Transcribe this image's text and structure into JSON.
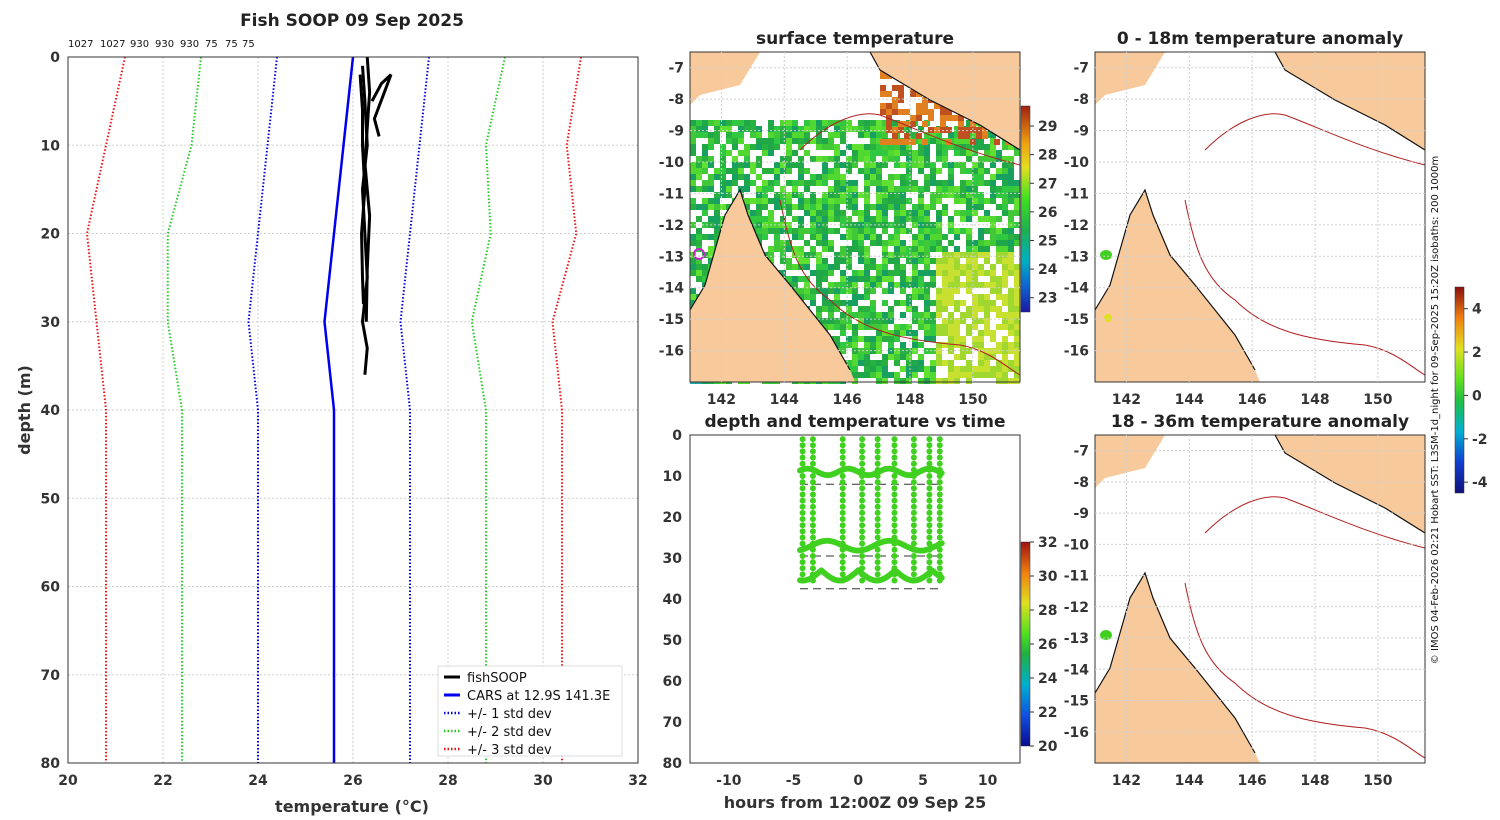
{
  "chart_data": [
    {
      "type": "line",
      "title": "Fish SOOP 09 Sep 2025",
      "xlabel": "temperature (°C)",
      "ylabel": "depth (m)",
      "xlim": [
        20,
        32
      ],
      "ylim": [
        80,
        0
      ],
      "xticks": [
        20,
        22,
        24,
        26,
        28,
        30,
        32
      ],
      "yticks": [
        0,
        10,
        20,
        30,
        40,
        50,
        60,
        70,
        80
      ],
      "top_labels": [
        "1027",
        "1027",
        "930",
        "930",
        "930",
        "75",
        "75",
        "75"
      ],
      "depths": [
        0,
        10,
        20,
        30,
        40,
        50,
        60,
        70,
        80
      ],
      "series": [
        {
          "name": "fishSOOP",
          "color": "#000000",
          "style": "solid",
          "traces": [
            {
              "t": [
                26.2,
                26.25,
                26.3,
                26.2,
                26.25,
                26.3,
                26.2,
                26.3,
                26.25
              ],
              "d": [
                1,
                5,
                10,
                15,
                20,
                25,
                30,
                33,
                36
              ]
            },
            {
              "t": [
                26.3,
                26.35,
                26.3,
                26.25,
                26.35,
                26.3,
                26.28
              ],
              "d": [
                0,
                4,
                8,
                12,
                18,
                24,
                30
              ]
            },
            {
              "t": [
                26.15,
                26.2,
                26.2,
                26.25,
                26.18,
                26.2,
                26.22
              ],
              "d": [
                2,
                6,
                10,
                15,
                20,
                25,
                28
              ]
            },
            {
              "t": [
                26.4,
                26.5,
                26.6,
                26.8,
                26.45,
                26.55
              ],
              "d": [
                5,
                4,
                3,
                2,
                7,
                9
              ]
            }
          ]
        },
        {
          "name": "CARS at 12.9S 141.3E",
          "color": "#0000ee",
          "style": "solid",
          "values": [
            26.0,
            25.8,
            25.6,
            25.4,
            25.6,
            25.6,
            25.6,
            25.6,
            25.6
          ]
        },
        {
          "name": "+/- 1 std dev",
          "color": "#0000dd",
          "style": "dotted",
          "left": [
            24.4,
            24.2,
            24.0,
            23.8,
            24.0,
            24.0,
            24.0,
            24.0,
            24.0
          ],
          "right": [
            27.6,
            27.4,
            27.2,
            27.0,
            27.2,
            27.2,
            27.2,
            27.2,
            27.2
          ]
        },
        {
          "name": "+/- 2 std dev",
          "color": "#22cc22",
          "style": "dotted",
          "left": [
            22.8,
            22.6,
            22.1,
            22.1,
            22.4,
            22.4,
            22.4,
            22.4,
            22.4
          ],
          "right": [
            29.2,
            28.8,
            28.9,
            28.5,
            28.8,
            28.8,
            28.8,
            28.8,
            28.8
          ]
        },
        {
          "name": "+/- 3 std dev",
          "color": "#ee1111",
          "style": "dotted",
          "left": [
            21.2,
            20.8,
            20.4,
            20.6,
            20.8,
            20.8,
            20.8,
            20.8,
            20.8
          ],
          "right": [
            30.8,
            30.5,
            30.7,
            30.2,
            30.4,
            30.4,
            30.4,
            30.4,
            30.4
          ]
        }
      ]
    },
    {
      "type": "heatmap",
      "title": "surface temperature",
      "xticks": [
        142,
        144,
        146,
        148,
        150
      ],
      "yticks": [
        -7,
        -8,
        -9,
        -10,
        -11,
        -12,
        -13,
        -14,
        -15,
        -16
      ],
      "xlim": [
        141,
        151.5
      ],
      "ylim": [
        -17,
        -6.5
      ],
      "colorbar": {
        "ticks": [
          23,
          24,
          25,
          26,
          27,
          28,
          29
        ],
        "range": [
          22.5,
          29.7
        ]
      }
    },
    {
      "type": "heatmap",
      "title": "0 - 18m temperature anomaly",
      "xticks": [
        142,
        144,
        146,
        148,
        150
      ],
      "yticks": [
        -7,
        -8,
        -9,
        -10,
        -11,
        -12,
        -13,
        -14,
        -15,
        -16
      ],
      "xlim": [
        141,
        151.5
      ],
      "ylim": [
        -17,
        -6.5
      ],
      "colorbar": {
        "ticks": [
          4,
          2,
          0,
          -2,
          -4
        ],
        "range": [
          -4.5,
          5
        ]
      }
    },
    {
      "type": "scatter",
      "title": "depth and temperature vs time",
      "xlabel": "hours from 12:00Z 09 Sep 25",
      "xlim": [
        -13,
        12.5
      ],
      "ylim": [
        80,
        0
      ],
      "xticks": [
        -10,
        -5,
        0,
        5,
        10
      ],
      "yticks": [
        0,
        10,
        20,
        30,
        40,
        50,
        60,
        70,
        80
      ],
      "x_range_hours": [
        -4.5,
        6.5
      ],
      "depth_range_m": [
        1,
        37
      ],
      "colorbar": {
        "ticks": [
          32,
          30,
          28,
          26,
          24,
          22,
          20
        ],
        "range": [
          20,
          32
        ]
      }
    },
    {
      "type": "heatmap",
      "title": "18 - 36m temperature anomaly",
      "xticks": [
        142,
        144,
        146,
        148,
        150
      ],
      "yticks": [
        -7,
        -8,
        -9,
        -10,
        -11,
        -12,
        -13,
        -14,
        -15,
        -16
      ],
      "xlim": [
        141,
        151.5
      ],
      "ylim": [
        -17,
        -6.5
      ]
    }
  ],
  "side_note": "© IMOS 04-Feb-2026 02:21 Hobart SST: L3SM-1d_night for 09-Sep-2025 15:20Z isobaths: 200  1000m"
}
